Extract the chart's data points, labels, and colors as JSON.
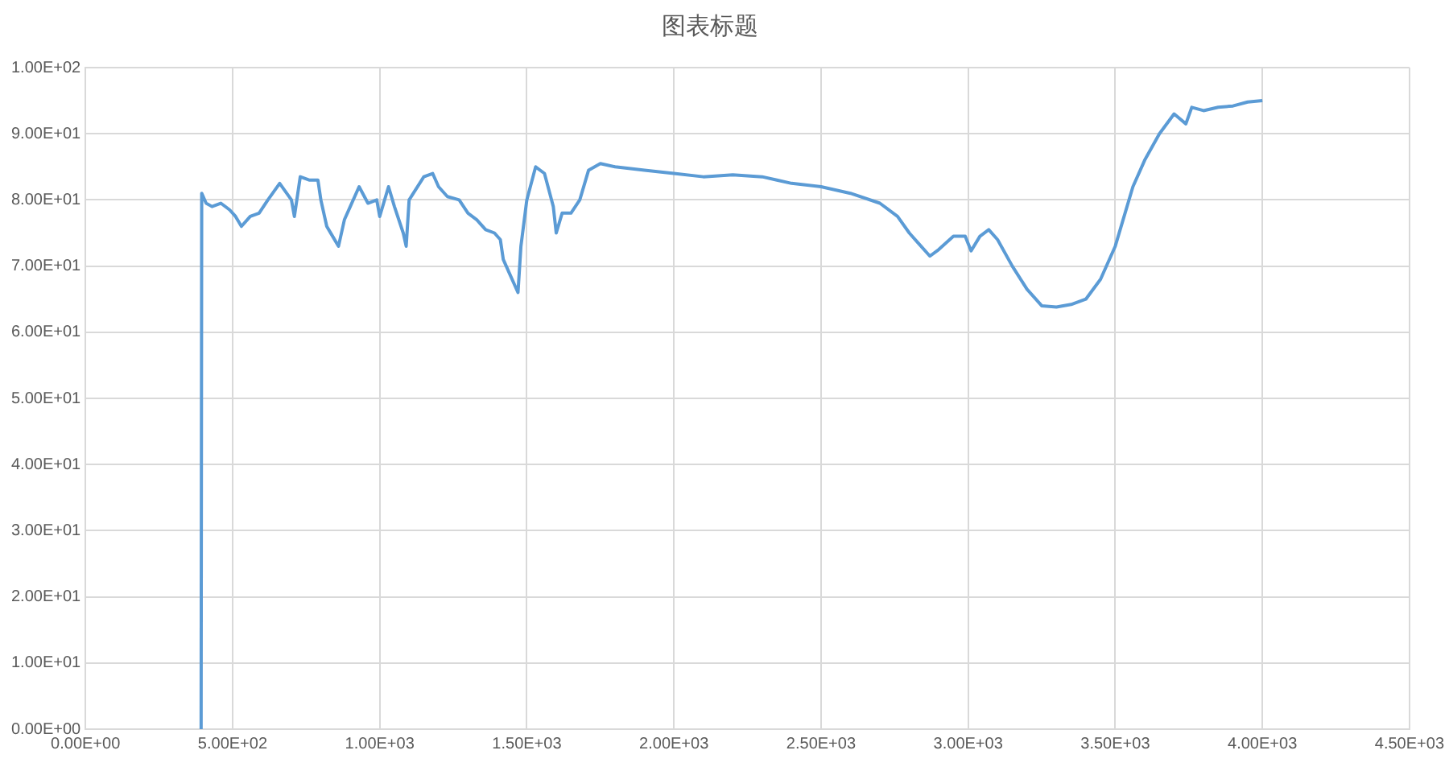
{
  "chart_data": {
    "type": "line",
    "title": "图表标题",
    "grid": true,
    "legend": false,
    "marker": "none",
    "line_style": "solid",
    "xlim": [
      0,
      4500
    ],
    "ylim": [
      0,
      100
    ],
    "xticks": [
      {
        "value": 0,
        "label": "0.00E+00"
      },
      {
        "value": 500,
        "label": "5.00E+02"
      },
      {
        "value": 1000,
        "label": "1.00E+03"
      },
      {
        "value": 1500,
        "label": "1.50E+03"
      },
      {
        "value": 2000,
        "label": "2.00E+03"
      },
      {
        "value": 2500,
        "label": "2.50E+03"
      },
      {
        "value": 3000,
        "label": "3.00E+03"
      },
      {
        "value": 3500,
        "label": "3.50E+03"
      },
      {
        "value": 4000,
        "label": "4.00E+03"
      },
      {
        "value": 4500,
        "label": "4.50E+03"
      }
    ],
    "yticks": [
      {
        "value": 0,
        "label": "0.00E+00"
      },
      {
        "value": 10,
        "label": "1.00E+01"
      },
      {
        "value": 20,
        "label": "2.00E+01"
      },
      {
        "value": 30,
        "label": "3.00E+01"
      },
      {
        "value": 40,
        "label": "4.00E+01"
      },
      {
        "value": 50,
        "label": "5.00E+01"
      },
      {
        "value": 60,
        "label": "6.00E+01"
      },
      {
        "value": 70,
        "label": "7.00E+01"
      },
      {
        "value": 80,
        "label": "8.00E+01"
      },
      {
        "value": 90,
        "label": "9.00E+01"
      },
      {
        "value": 100,
        "label": "1.00E+02"
      }
    ],
    "series": [
      {
        "color": "#5b9bd5",
        "x": [
          393,
          395,
          410,
          430,
          460,
          490,
          510,
          530,
          560,
          590,
          620,
          660,
          700,
          710,
          730,
          760,
          790,
          800,
          820,
          840,
          860,
          880,
          900,
          930,
          960,
          990,
          1000,
          1030,
          1050,
          1080,
          1090,
          1100,
          1150,
          1180,
          1200,
          1230,
          1270,
          1300,
          1330,
          1360,
          1390,
          1410,
          1420,
          1440,
          1460,
          1470,
          1480,
          1500,
          1530,
          1560,
          1590,
          1600,
          1620,
          1650,
          1680,
          1710,
          1750,
          1800,
          1900,
          2000,
          2100,
          2200,
          2300,
          2350,
          2400,
          2500,
          2600,
          2700,
          2760,
          2800,
          2830,
          2870,
          2900,
          2950,
          2990,
          3010,
          3040,
          3070,
          3100,
          3150,
          3200,
          3250,
          3300,
          3350,
          3400,
          3450,
          3500,
          3540,
          3560,
          3600,
          3650,
          3700,
          3740,
          3760,
          3800,
          3850,
          3900,
          3950,
          4000
        ],
        "values": [
          0,
          81,
          79.5,
          79,
          79.5,
          78.5,
          77.5,
          76,
          77.5,
          78,
          80,
          82.5,
          80,
          77.5,
          83.5,
          83,
          83,
          80,
          76,
          74.5,
          73,
          77,
          79,
          82,
          79.5,
          80,
          77.5,
          82,
          79,
          75,
          73,
          80,
          83.5,
          84,
          82,
          80.5,
          80,
          78,
          77,
          75.5,
          75,
          74,
          71,
          69,
          67,
          66,
          73,
          80,
          85,
          84,
          79,
          75,
          78,
          78,
          80,
          84.5,
          85.5,
          85,
          84.5,
          84,
          83.5,
          83.8,
          83.5,
          83,
          82.5,
          82,
          81,
          79.5,
          77.5,
          75,
          73.5,
          71.5,
          72.5,
          74.5,
          74.5,
          72.3,
          74.5,
          75.5,
          74,
          70,
          66.5,
          64,
          63.8,
          64.2,
          65,
          68,
          73,
          79,
          82,
          86,
          90,
          93,
          91.5,
          94,
          93.5,
          94,
          94.2,
          94.8,
          95
        ]
      }
    ]
  }
}
